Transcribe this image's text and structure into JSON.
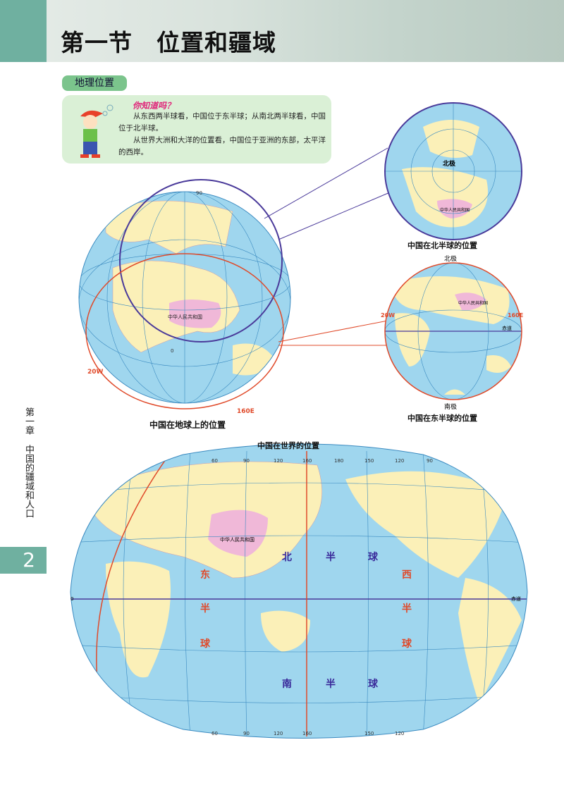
{
  "header": {
    "title": "第一节　位置和疆域"
  },
  "section": {
    "tag": "地理位置"
  },
  "infobox": {
    "heading": "你知道吗？",
    "paragraphs": [
      "从东西两半球看，中国位于东半球；从南北两半球看，中国位于北半球。",
      "从世界大洲和大洋的位置看，中国位于亚洲的东部，太平洋的西岸。"
    ]
  },
  "sidebar": {
    "chapter": "第一章",
    "chapter_title": "中国的疆域和人口",
    "page_number": "2"
  },
  "globe_main": {
    "caption": "中国在地球上的位置",
    "china": "中华人民共和国",
    "labels": {
      "w20": "20W",
      "e160": "160E",
      "lat90": "90",
      "zero": "0"
    }
  },
  "globe_north": {
    "caption": "中国在北半球的位置",
    "pole": "北极",
    "china": "中华人民共和国"
  },
  "globe_east": {
    "caption": "中国在东半球的位置",
    "north_pole": "北极",
    "south_pole": "南极",
    "w20": "20W",
    "e160": "160E",
    "equator": "赤道",
    "china": "中华人民共和国"
  },
  "world": {
    "title": "中国在世界的位置",
    "china": "中华人民共和国",
    "n_hemi": [
      "北",
      "半",
      "球"
    ],
    "s_hemi": [
      "南",
      "半",
      "球"
    ],
    "east_hemi": [
      "东",
      "半",
      "球"
    ],
    "west_hemi": [
      "西",
      "半",
      "球"
    ],
    "equator": "赤道",
    "lon_top": [
      "60",
      "90",
      "120",
      "160",
      "180",
      "150",
      "120",
      "90"
    ],
    "lon_bottom": [
      "60",
      "90",
      "120",
      "160",
      "150",
      "120"
    ],
    "lat_left": "0"
  },
  "colors": {
    "ocean": "#9fd6ee",
    "land": "#fbf0b8",
    "china": "#f0b8d8",
    "accent": "#6fb0a0",
    "red_line": "#e04a2a",
    "purple_line": "#4a3a9a"
  }
}
